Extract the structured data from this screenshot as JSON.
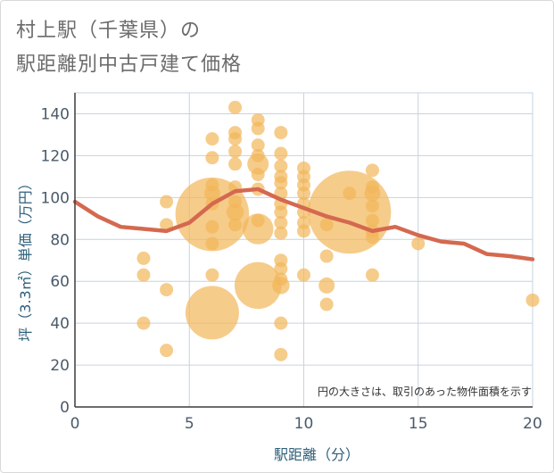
{
  "title_line1": "村上駅（千葉県）の",
  "title_line2": "駅距離別中古戸建て価格",
  "note": "円の大きさは、取引のあった物件面積を示す",
  "colors": {
    "bubble": "#f2b75a",
    "line": "#d4694f",
    "grid": "#c6d3e0",
    "axis": "#2e5f7a"
  },
  "chart_data": {
    "type": "scatter",
    "xlabel": "駅距離（分）",
    "ylabel": "坪（3.3㎡）単価（万円）",
    "xlim": [
      0,
      20
    ],
    "ylim": [
      0,
      150
    ],
    "x_ticks": [
      0,
      5,
      10,
      15,
      20
    ],
    "y_ticks": [
      0,
      20,
      40,
      60,
      80,
      100,
      120,
      140
    ],
    "grid": true,
    "bubbles": [
      {
        "x": 3,
        "y": 71,
        "size": 1
      },
      {
        "x": 3,
        "y": 63,
        "size": 1
      },
      {
        "x": 3,
        "y": 40,
        "size": 1
      },
      {
        "x": 4,
        "y": 98,
        "size": 1
      },
      {
        "x": 4,
        "y": 87,
        "size": 1
      },
      {
        "x": 4,
        "y": 56,
        "size": 1
      },
      {
        "x": 4,
        "y": 27,
        "size": 1
      },
      {
        "x": 6,
        "y": 128,
        "size": 1
      },
      {
        "x": 6,
        "y": 119,
        "size": 1
      },
      {
        "x": 6,
        "y": 106,
        "size": 1
      },
      {
        "x": 6,
        "y": 102,
        "size": 1.2
      },
      {
        "x": 6,
        "y": 97,
        "size": 1
      },
      {
        "x": 6,
        "y": 92,
        "size": 5.5
      },
      {
        "x": 6,
        "y": 86,
        "size": 1
      },
      {
        "x": 6,
        "y": 78,
        "size": 1
      },
      {
        "x": 6,
        "y": 63,
        "size": 1
      },
      {
        "x": 6,
        "y": 45,
        "size": 4
      },
      {
        "x": 7,
        "y": 143,
        "size": 1
      },
      {
        "x": 7,
        "y": 131,
        "size": 1
      },
      {
        "x": 7,
        "y": 128,
        "size": 1
      },
      {
        "x": 7,
        "y": 122,
        "size": 1
      },
      {
        "x": 7,
        "y": 116,
        "size": 1
      },
      {
        "x": 7,
        "y": 105,
        "size": 1
      },
      {
        "x": 7,
        "y": 98,
        "size": 1
      },
      {
        "x": 7,
        "y": 93,
        "size": 1.3
      },
      {
        "x": 7,
        "y": 87,
        "size": 1
      },
      {
        "x": 8,
        "y": 137,
        "size": 1
      },
      {
        "x": 8,
        "y": 133,
        "size": 1
      },
      {
        "x": 8,
        "y": 125,
        "size": 1
      },
      {
        "x": 8,
        "y": 120,
        "size": 1
      },
      {
        "x": 8,
        "y": 116,
        "size": 1.6
      },
      {
        "x": 8,
        "y": 111,
        "size": 1
      },
      {
        "x": 8,
        "y": 104,
        "size": 1
      },
      {
        "x": 8,
        "y": 89,
        "size": 1
      },
      {
        "x": 8,
        "y": 85,
        "size": 2.3
      },
      {
        "x": 8,
        "y": 58,
        "size": 3.5
      },
      {
        "x": 9,
        "y": 131,
        "size": 1
      },
      {
        "x": 9,
        "y": 121,
        "size": 1
      },
      {
        "x": 9,
        "y": 115,
        "size": 1
      },
      {
        "x": 9,
        "y": 110,
        "size": 1
      },
      {
        "x": 9,
        "y": 107,
        "size": 1
      },
      {
        "x": 9,
        "y": 102,
        "size": 1
      },
      {
        "x": 9,
        "y": 97,
        "size": 1
      },
      {
        "x": 9,
        "y": 93,
        "size": 1
      },
      {
        "x": 9,
        "y": 88,
        "size": 1
      },
      {
        "x": 9,
        "y": 83,
        "size": 1
      },
      {
        "x": 9,
        "y": 70,
        "size": 1
      },
      {
        "x": 9,
        "y": 66,
        "size": 1
      },
      {
        "x": 9,
        "y": 61,
        "size": 1
      },
      {
        "x": 9,
        "y": 58,
        "size": 1.3
      },
      {
        "x": 9,
        "y": 40,
        "size": 1
      },
      {
        "x": 9,
        "y": 25,
        "size": 1
      },
      {
        "x": 10,
        "y": 114,
        "size": 1
      },
      {
        "x": 10,
        "y": 110,
        "size": 1
      },
      {
        "x": 10,
        "y": 106,
        "size": 1
      },
      {
        "x": 10,
        "y": 102,
        "size": 1
      },
      {
        "x": 10,
        "y": 97,
        "size": 1
      },
      {
        "x": 10,
        "y": 93,
        "size": 1
      },
      {
        "x": 10,
        "y": 88,
        "size": 1
      },
      {
        "x": 10,
        "y": 84,
        "size": 1
      },
      {
        "x": 10,
        "y": 63,
        "size": 1
      },
      {
        "x": 11,
        "y": 87,
        "size": 1
      },
      {
        "x": 11,
        "y": 72,
        "size": 1
      },
      {
        "x": 11,
        "y": 58,
        "size": 1.2
      },
      {
        "x": 11,
        "y": 49,
        "size": 1
      },
      {
        "x": 12,
        "y": 102,
        "size": 1
      },
      {
        "x": 12,
        "y": 93,
        "size": 6.2
      },
      {
        "x": 13,
        "y": 113,
        "size": 1
      },
      {
        "x": 13,
        "y": 105,
        "size": 1
      },
      {
        "x": 13,
        "y": 102,
        "size": 1.2
      },
      {
        "x": 13,
        "y": 96,
        "size": 1
      },
      {
        "x": 13,
        "y": 89,
        "size": 1
      },
      {
        "x": 13,
        "y": 84,
        "size": 1
      },
      {
        "x": 13,
        "y": 81,
        "size": 1
      },
      {
        "x": 13,
        "y": 63,
        "size": 1
      },
      {
        "x": 15,
        "y": 78,
        "size": 1
      },
      {
        "x": 20,
        "y": 51,
        "size": 1
      }
    ],
    "series": [
      {
        "x": [
          0,
          1,
          2,
          3,
          4,
          5,
          6,
          7,
          8,
          9,
          10,
          11,
          12,
          13,
          14,
          15,
          16,
          17,
          18,
          19,
          20
        ],
        "values": [
          98,
          91,
          86,
          85,
          84,
          88,
          97,
          103,
          104,
          99,
          95,
          91,
          88,
          84,
          86,
          82,
          79,
          78,
          73,
          72,
          70.5
        ]
      }
    ]
  }
}
